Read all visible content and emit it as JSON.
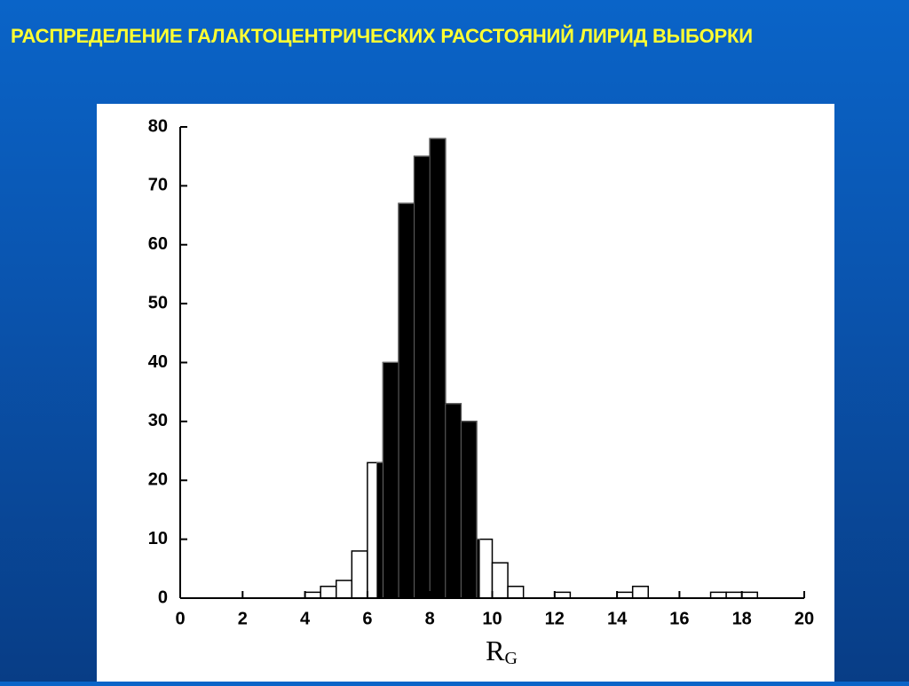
{
  "header": {
    "title": "РАСПРЕДЕЛЕНИЕ ГАЛАКТОЦЕНТРИЧЕСКИХ РАССТОЯНИЙ ЛИРИД ВЫБОРКИ"
  },
  "chart_data": {
    "type": "histogram",
    "xlabel": "R",
    "xlabel_sub": "G",
    "bins": [
      0,
      0.5,
      1,
      1.5,
      2,
      2.5,
      3,
      3.5,
      4,
      4.5,
      5,
      5.5,
      6,
      6.5,
      7,
      7.5,
      8,
      8.5,
      9,
      9.5,
      10,
      10.5,
      11,
      11.5,
      12,
      12.5,
      13,
      13.5,
      14,
      14.5,
      15,
      15.5,
      16,
      16.5,
      17,
      17.5,
      18,
      18.5,
      19
    ],
    "values": [
      0,
      0,
      0,
      0,
      0,
      0,
      0,
      0,
      1,
      2,
      3,
      8,
      23,
      40,
      67,
      75,
      78,
      33,
      30,
      10,
      6,
      2,
      0,
      0,
      1,
      0,
      0,
      0,
      1,
      2,
      0,
      0,
      0,
      0,
      1,
      1,
      1,
      0
    ],
    "color": "#ffffff",
    "edge_color": "#000000",
    "highlight_range": [
      6.3,
      9.6
    ],
    "highlight_color": "#000000",
    "xlim": [
      0,
      20
    ],
    "xticks": [
      0,
      2,
      4,
      6,
      8,
      10,
      12,
      14,
      16,
      18,
      20
    ],
    "ylim": [
      0,
      80
    ],
    "yticks": [
      0,
      10,
      20,
      30,
      40,
      50,
      60,
      70,
      80
    ]
  }
}
